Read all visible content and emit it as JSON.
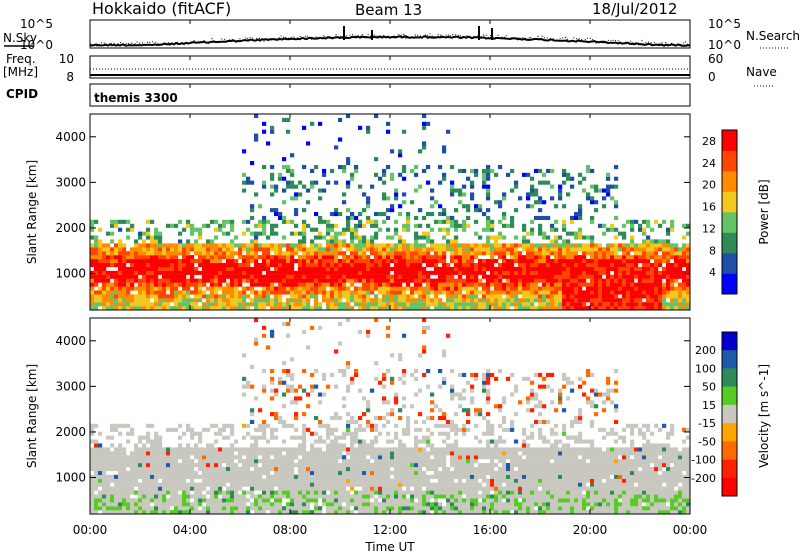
{
  "header": {
    "station": "Hokkaido (fitACF)",
    "beam": "Beam 13",
    "date": "18/Jul/2012"
  },
  "noise_panel": {
    "left_label": "N.Sky",
    "right_label": "N.Search",
    "tick_top": "10^5",
    "tick_bottom": "10^0",
    "right_tick_top": "10^5",
    "right_tick_bottom": "10^0"
  },
  "freq_panel": {
    "left_label_line1": "Freq.",
    "left_label_line2": "[MHz]",
    "left_ticks": [
      "10",
      "8"
    ],
    "right_ticks": [
      "60",
      "0"
    ],
    "right_label": "Nave"
  },
  "cpid_panel": {
    "left_label": "CPID",
    "program": "themis 3300"
  },
  "chart_data": [
    {
      "type": "heatmap",
      "panel": "power",
      "ylabel": "Slant Range [km]",
      "yticks": [
        "1000",
        "2000",
        "3000",
        "4000"
      ],
      "ylim": [
        200,
        4500
      ],
      "colorbar_label": "Power [dB]",
      "colorbar_ticks": [
        "4",
        "8",
        "12",
        "16",
        "20",
        "24",
        "28"
      ],
      "colorbar_range": [
        0,
        30
      ],
      "colors": [
        "#0000ff",
        "#1f4ea8",
        "#2e8b57",
        "#66c266",
        "#f2c81e",
        "#ff8c00",
        "#ff4500",
        "#ff0000"
      ]
    },
    {
      "type": "heatmap",
      "panel": "velocity",
      "ylabel": "Slant Range [km]",
      "yticks": [
        "1000",
        "2000",
        "3000",
        "4000"
      ],
      "ylim": [
        200,
        4500
      ],
      "colorbar_label": "Velocity [m s^-1]",
      "colorbar_ticks": [
        "200",
        "100",
        "50",
        "15",
        "-15",
        "-50",
        "-100",
        "-200"
      ],
      "colorbar_range": [
        -250,
        250
      ],
      "colors": [
        "#0000cc",
        "#1e5aa8",
        "#2e8b57",
        "#55cc22",
        "#c8c8c0",
        "#ffa500",
        "#ff6a00",
        "#ff2200",
        "#ff0000"
      ]
    }
  ],
  "time_axis": {
    "ticks": [
      "00:00",
      "04:00",
      "08:00",
      "12:00",
      "16:00",
      "20:00",
      "00:00"
    ],
    "label": "Time UT"
  }
}
